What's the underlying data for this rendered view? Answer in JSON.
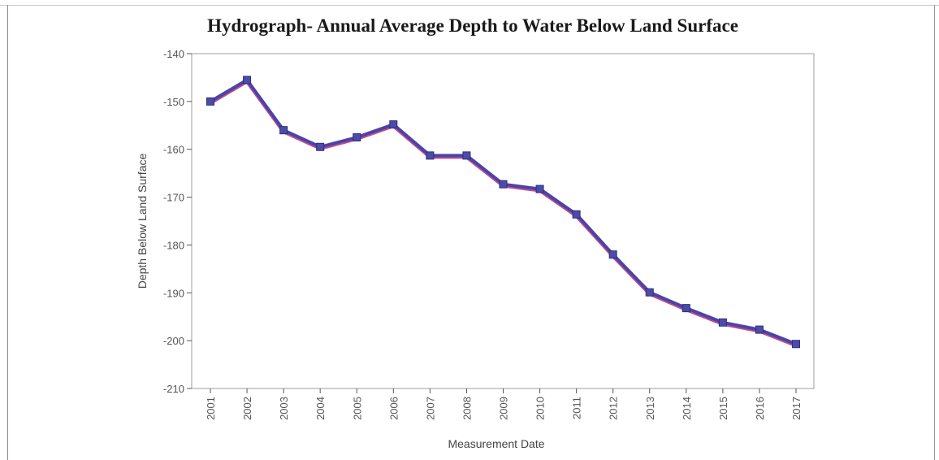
{
  "chart_data": {
    "type": "line",
    "title": "Hydrograph- Annual Average Depth to Water Below Land Surface",
    "xlabel": "Measurement Date",
    "ylabel": "Depth Below Land Surface",
    "categories": [
      "2001",
      "2002",
      "2003",
      "2004",
      "2005",
      "2006",
      "2007",
      "2008",
      "2009",
      "2010",
      "2011",
      "2012",
      "2013",
      "2014",
      "2015",
      "2016",
      "2017"
    ],
    "series": [
      {
        "values": [
          -150.0,
          -145.5,
          -156.0,
          -159.5,
          -157.5,
          -154.8,
          -161.3,
          -161.3,
          -167.3,
          -168.3,
          -173.6,
          -182.0,
          -189.9,
          -193.2,
          -196.2,
          -197.7,
          -200.7
        ]
      }
    ],
    "ylim": [
      -210,
      -140
    ],
    "yticks": [
      -140,
      -150,
      -160,
      -170,
      -180,
      -190,
      -200,
      -210
    ],
    "grid": false,
    "legend": "none",
    "colors": {
      "line": "#4a44a8",
      "line_shadow": "#c04a8c",
      "marker": "#4c4ca8",
      "axis": "#555555"
    }
  }
}
